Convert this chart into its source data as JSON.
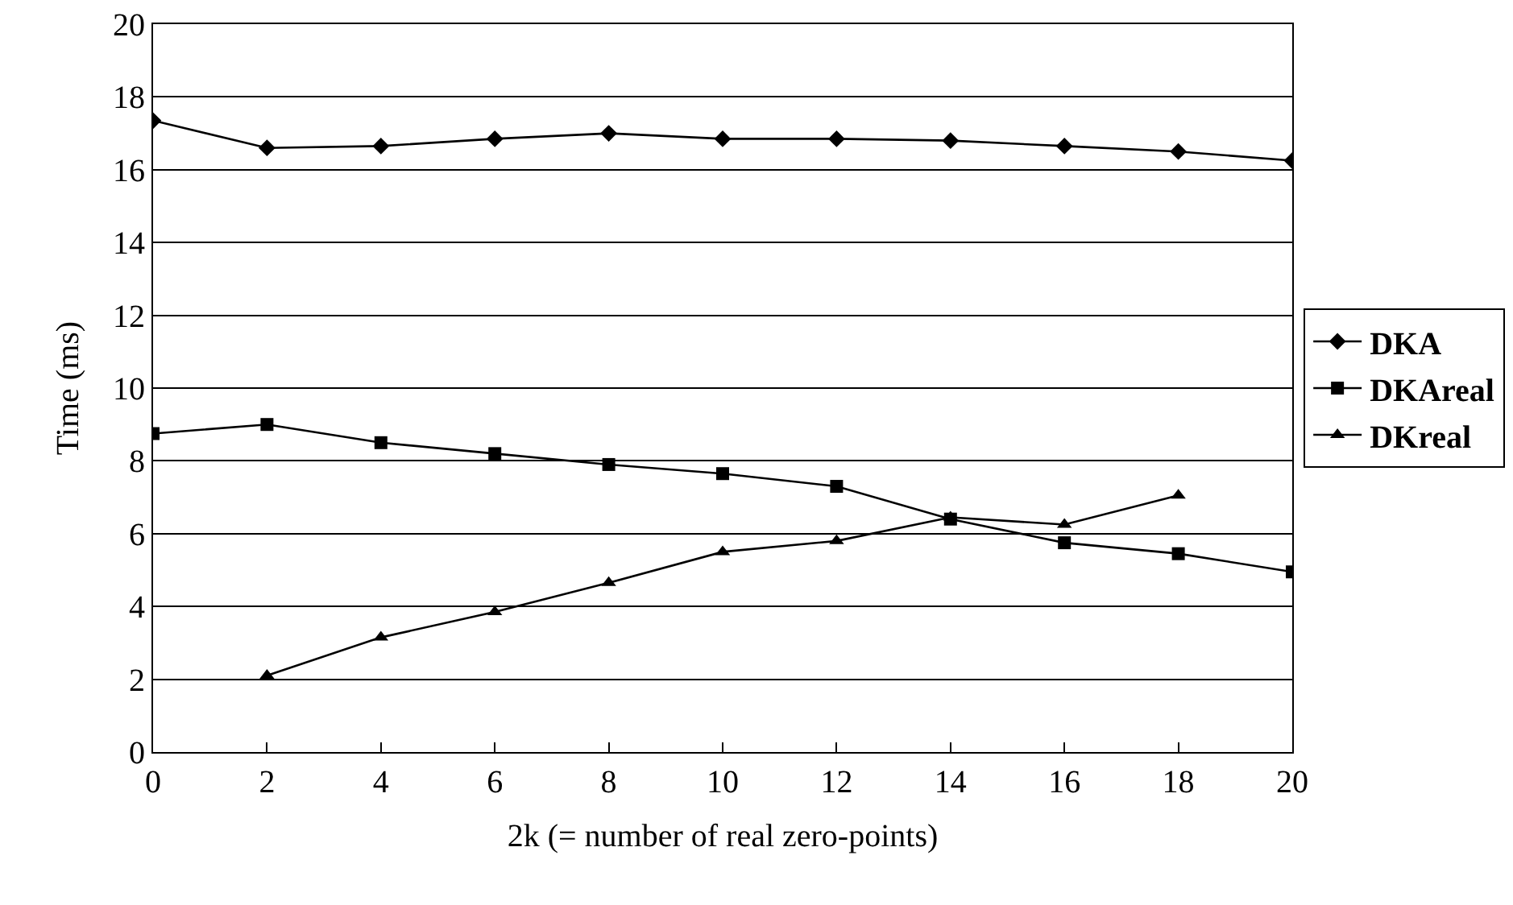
{
  "chart_data": {
    "type": "line",
    "xlabel": "2k (= number of real zero-points)",
    "ylabel": "Time (ms)",
    "x": [
      0,
      2,
      4,
      6,
      8,
      10,
      12,
      14,
      16,
      18,
      20
    ],
    "xlim": [
      0,
      20
    ],
    "xticks": [
      0,
      2,
      4,
      6,
      8,
      10,
      12,
      14,
      16,
      18,
      20
    ],
    "ylim": [
      0,
      20
    ],
    "yticks": [
      0,
      2,
      4,
      6,
      8,
      10,
      12,
      14,
      16,
      18,
      20
    ],
    "grid": "y",
    "legend": "right",
    "series": [
      {
        "name": "DKA",
        "color": "#000000",
        "marker": "diamond",
        "values": [
          17.35,
          16.6,
          16.65,
          16.85,
          17.0,
          16.85,
          16.85,
          16.8,
          16.65,
          16.5,
          16.25
        ]
      },
      {
        "name": "DKAreal",
        "color": "#000000",
        "marker": "square",
        "values": [
          8.75,
          9.0,
          8.5,
          8.2,
          7.9,
          7.65,
          7.3,
          6.4,
          5.75,
          5.45,
          4.95
        ]
      },
      {
        "name": "DKreal",
        "color": "#000000",
        "marker": "triangle",
        "values": [
          null,
          2.1,
          3.15,
          3.85,
          4.65,
          5.5,
          5.8,
          6.45,
          6.25,
          7.05,
          null
        ]
      }
    ]
  }
}
